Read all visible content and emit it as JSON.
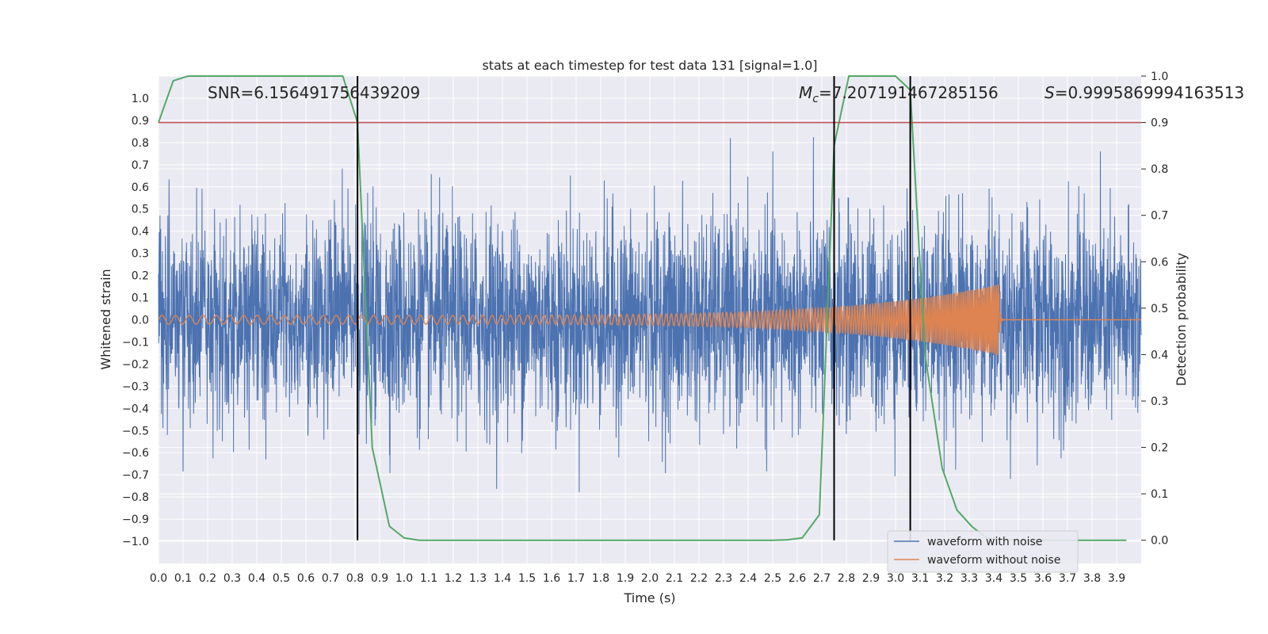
{
  "chart_data": {
    "type": "line",
    "title": "stats at each timestep for test data 131 [signal=1.0]",
    "xlabel": "Time (s)",
    "ylabel": "Whitened strain",
    "ylabel_right": "Detection probability",
    "xlim": [
      0.0,
      4.0
    ],
    "ylim": [
      -1.1,
      1.1
    ],
    "ylim_right": [
      -0.05,
      1.0
    ],
    "x_ticks": [
      "0.0",
      "0.1",
      "0.2",
      "0.3",
      "0.4",
      "0.5",
      "0.6",
      "0.7",
      "0.8",
      "0.9",
      "1.0",
      "1.1",
      "1.2",
      "1.3",
      "1.4",
      "1.5",
      "1.6",
      "1.7",
      "1.8",
      "1.9",
      "2.0",
      "2.1",
      "2.2",
      "2.3",
      "2.4",
      "2.5",
      "2.6",
      "2.7",
      "2.8",
      "2.9",
      "3.0",
      "3.1",
      "3.2",
      "3.3",
      "3.4",
      "3.5",
      "3.6",
      "3.7",
      "3.8",
      "3.9"
    ],
    "y_ticks": [
      "1.0",
      "0.9",
      "0.8",
      "0.7",
      "0.6",
      "0.5",
      "0.4",
      "0.3",
      "0.2",
      "0.1",
      "0.0",
      "−0.1",
      "−0.2",
      "−0.3",
      "−0.4",
      "−0.5",
      "−0.6",
      "−0.7",
      "−0.8",
      "−0.9",
      "−1.0"
    ],
    "y_right_ticks": [
      "1.0",
      "0.9",
      "0.8",
      "0.7",
      "0.6",
      "0.5",
      "0.4",
      "0.3",
      "0.2",
      "0.1",
      "0.0"
    ],
    "grid": true,
    "legend_placement": "lower-right",
    "annotations": {
      "snr_text": "SNR=6.156491756439209",
      "mc_symbol": "M",
      "mc_sub": "c",
      "mc_value": "=7.207191467285156",
      "s_symbol": "S",
      "s_value": "=0.9995869994163513"
    },
    "series": [
      {
        "name": "waveform with noise",
        "axis": "left",
        "color": "#4c72b0",
        "description_values": "dense noise, amplitude roughly between -1.0 and 0.95 over 0.0–4.0 s"
      },
      {
        "name": "waveform without noise",
        "axis": "left",
        "color": "#dd8452",
        "chirp": {
          "start_time": 0.0,
          "merger_time": 3.42,
          "start_amplitude": 0.02,
          "peak_amplitude": 0.16,
          "start_freq_hz": 18,
          "end_freq_hz": 150
        }
      },
      {
        "name": "",
        "axis": "right",
        "color": "#55a868",
        "x": [
          0.0,
          0.06,
          0.12,
          0.25,
          0.5,
          0.75,
          0.81,
          0.87,
          0.94,
          1.0,
          1.06,
          1.25,
          1.5,
          1.75,
          2.0,
          2.25,
          2.5,
          2.56,
          2.62,
          2.69,
          2.75,
          2.81,
          2.87,
          2.94,
          3.0,
          3.06,
          3.12,
          3.19,
          3.25,
          3.31,
          3.37,
          3.5,
          3.75,
          3.94
        ],
        "values": [
          0.9,
          0.99,
          1.0,
          1.0,
          1.0,
          1.0,
          0.9,
          0.2,
          0.03,
          0.005,
          0.0,
          0.0,
          0.0,
          0.0,
          0.0,
          0.0,
          0.0,
          0.001,
          0.005,
          0.055,
          0.85,
          1.0,
          1.0,
          1.0,
          1.0,
          0.97,
          0.4,
          0.155,
          0.065,
          0.03,
          0.005,
          0.0,
          0.0,
          0.0
        ]
      }
    ],
    "hlines": [
      {
        "axis": "right",
        "y": 0.9,
        "color": "#c44e52"
      }
    ],
    "vlines": [
      {
        "x": 0.81,
        "color": "#000000"
      },
      {
        "x": 2.75,
        "color": "#000000"
      },
      {
        "x": 3.06,
        "color": "#000000"
      }
    ]
  }
}
